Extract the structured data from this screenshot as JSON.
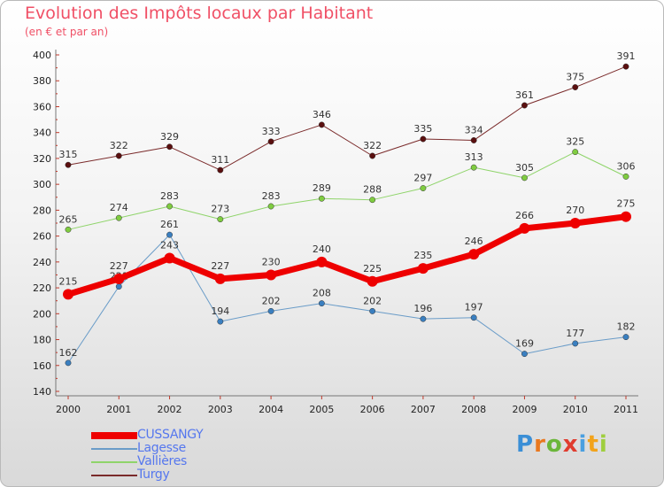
{
  "header": {
    "title": "Evolution des Impôts locaux par Habitant",
    "subtitle": "(en € et par an)"
  },
  "colors": {
    "title": "#f05066",
    "legend_text": "#5577ee"
  },
  "logo": {
    "text": "Proxiti",
    "letter_colors": [
      "#3b8fd6",
      "#e9781f",
      "#6bb63a",
      "#e03c2f",
      "#4a9fe0",
      "#f2a31b",
      "#9fce3e"
    ]
  },
  "chart_data": {
    "type": "line",
    "x": [
      2000,
      2001,
      2002,
      2003,
      2004,
      2005,
      2006,
      2007,
      2008,
      2009,
      2010,
      2011
    ],
    "ylim": [
      140,
      400
    ],
    "yticks": [
      140,
      160,
      180,
      200,
      220,
      240,
      260,
      280,
      300,
      320,
      340,
      360,
      380,
      400
    ],
    "grid": false,
    "legend_position": "bottom-left",
    "series": [
      {
        "name": "Turgy",
        "color": "#7a2a2a",
        "point_color": "#5a0f0f",
        "width": 1,
        "values": [
          315,
          322,
          329,
          311,
          333,
          346,
          322,
          335,
          334,
          361,
          375,
          391
        ]
      },
      {
        "name": "Vallières",
        "color": "#8fd46a",
        "point_color": "#7fcc40",
        "width": 1,
        "values": [
          265,
          274,
          283,
          273,
          283,
          289,
          288,
          297,
          313,
          305,
          325,
          306
        ]
      },
      {
        "name": "Lagesse",
        "color": "#6a9cc8",
        "point_color": "#3a7fc0",
        "width": 1,
        "values": [
          162,
          221,
          261,
          194,
          202,
          208,
          202,
          196,
          197,
          169,
          177,
          182
        ]
      },
      {
        "name": "CUSSANGY",
        "color": "#ee0000",
        "point_color": "#ee0000",
        "width": 7,
        "values": [
          215,
          227,
          243,
          227,
          230,
          240,
          225,
          235,
          246,
          266,
          270,
          275
        ]
      }
    ],
    "legend": [
      "CUSSANGY",
      "Lagesse",
      "Vallières",
      "Turgy"
    ]
  }
}
